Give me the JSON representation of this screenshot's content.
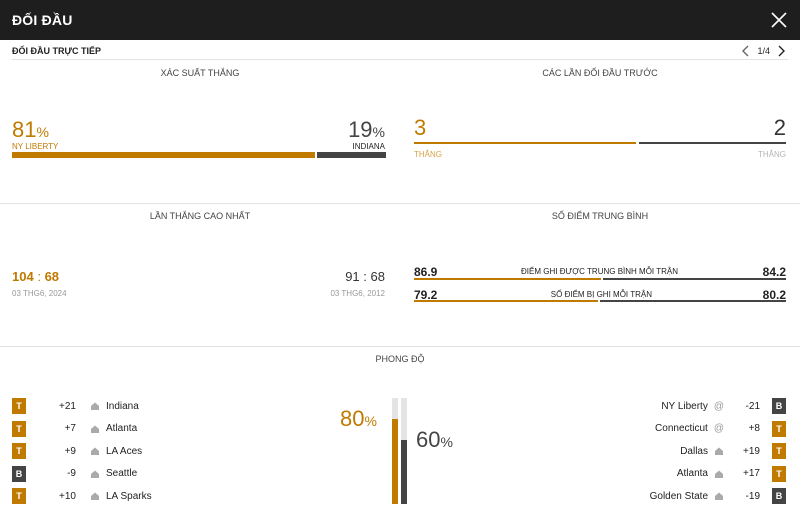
{
  "header": {
    "title": "ĐỐI ĐẦU"
  },
  "subheader": {
    "label": "ĐỐI ĐẦU TRỰC TIẾP",
    "pager": "1/4"
  },
  "win_probability": {
    "title": "XÁC SUẤT THẮNG",
    "home": {
      "value": "81",
      "pct": "%",
      "team": "NY LIBERTY",
      "fraction": 0.81
    },
    "away": {
      "value": "19",
      "pct": "%",
      "team": "INDIANA",
      "fraction": 0.19
    }
  },
  "previous_meetings": {
    "title": "CÁC LẦN ĐỐI ĐẦU TRƯỚC",
    "home": {
      "value": "3",
      "label": "THẮNG"
    },
    "away": {
      "value": "2",
      "label": "THẮNG"
    }
  },
  "biggest_win": {
    "title": "LẦN THẮNG CAO NHẤT",
    "home": {
      "score_a": "104",
      "sep": ":",
      "score_b": "68",
      "date": "03 THG6, 2024"
    },
    "away": {
      "score_a": "91",
      "sep": ":",
      "score_b": "68",
      "date": "03 THG6, 2012"
    }
  },
  "avg_points": {
    "title": "SỐ ĐIỂM TRUNG BÌNH",
    "rows": [
      {
        "home": "86.9",
        "label": "ĐIỂM GHI ĐƯỢC TRUNG BÌNH MỖI TRẬN",
        "away": "84.2"
      },
      {
        "home": "79.2",
        "label": "SỐ ĐIỂM BỊ GHI MỖI TRẬN",
        "away": "80.2"
      }
    ]
  },
  "form": {
    "title": "PHONG ĐỘ",
    "home_pct": {
      "value": "80",
      "pct": "%",
      "fraction": 0.8
    },
    "away_pct": {
      "value": "60",
      "pct": "%",
      "fraction": 0.6
    },
    "home_games": [
      {
        "result": "T",
        "margin": "+21",
        "opponent": "Indiana"
      },
      {
        "result": "T",
        "margin": "+7",
        "opponent": "Atlanta"
      },
      {
        "result": "T",
        "margin": "+9",
        "opponent": "LA Aces"
      },
      {
        "result": "B",
        "margin": "-9",
        "opponent": "Seattle"
      },
      {
        "result": "T",
        "margin": "+10",
        "opponent": "LA Sparks"
      }
    ],
    "away_games": [
      {
        "opponent": "NY Liberty",
        "venue": "away",
        "margin": "-21",
        "result": "B"
      },
      {
        "opponent": "Connecticut",
        "venue": "away",
        "margin": "+8",
        "result": "T"
      },
      {
        "opponent": "Dallas",
        "venue": "home",
        "margin": "+19",
        "result": "T"
      },
      {
        "opponent": "Atlanta",
        "venue": "home",
        "margin": "+17",
        "result": "T"
      },
      {
        "opponent": "Golden State",
        "venue": "home",
        "margin": "-19",
        "result": "B"
      }
    ],
    "at_symbol": "@"
  },
  "colors": {
    "accent": "#c07a00",
    "dark": "#444444",
    "topbar": "#1e1e1e"
  }
}
